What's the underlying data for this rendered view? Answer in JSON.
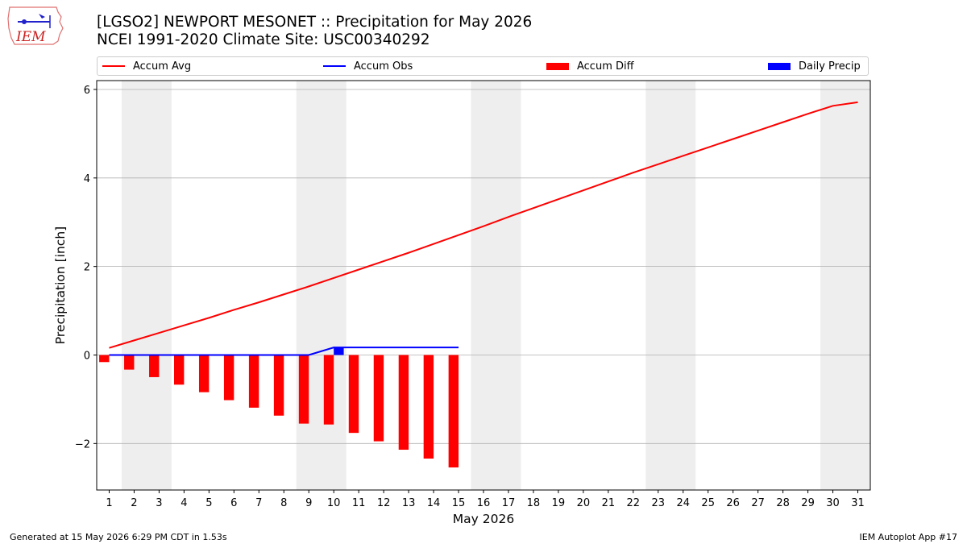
{
  "title_line1": "[LGSO2] NEWPORT MESONET :: Precipitation for May 2026",
  "title_line2": "NCEI 1991-2020 Climate Site: USC00340292",
  "logo_text": "IEM",
  "footer_left": "Generated at 15 May 2026 6:29 PM CDT in 1.53s",
  "footer_right": "IEM Autoplot App #17",
  "colors": {
    "accum_avg": "#ff0000",
    "accum_obs": "#0000ff",
    "accum_diff": "#ff0000",
    "daily_precip": "#0000ff",
    "weekend_shade": "#eeeeee",
    "grid": "#b0b0b0"
  },
  "chart_data": {
    "type": "bar",
    "title": "[LGSO2] NEWPORT MESONET :: Precipitation for May 2026",
    "subtitle": "NCEI 1991-2020 Climate Site: USC00340292",
    "xlabel": "May 2026",
    "ylabel": "Precipitation [inch]",
    "xlim": [
      0.5,
      31.5
    ],
    "ylim": [
      -3.05,
      6.2
    ],
    "yticks": [
      -2,
      0,
      2,
      4,
      6
    ],
    "ytick_labels": [
      "−2",
      "0",
      "2",
      "4",
      "6"
    ],
    "xticks": [
      1,
      2,
      3,
      4,
      5,
      6,
      7,
      8,
      9,
      10,
      11,
      12,
      13,
      14,
      15,
      16,
      17,
      18,
      19,
      20,
      21,
      22,
      23,
      24,
      25,
      26,
      27,
      28,
      29,
      30,
      31
    ],
    "grid": "horizontal",
    "legend_position": "top",
    "weekend_spans": [
      [
        1.5,
        3.5
      ],
      [
        8.5,
        10.5
      ],
      [
        15.5,
        17.5
      ],
      [
        22.5,
        24.5
      ],
      [
        29.5,
        31.5
      ]
    ],
    "series": [
      {
        "name": "Accum Avg",
        "kind": "line",
        "x": [
          1,
          2,
          3,
          4,
          5,
          6,
          7,
          8,
          9,
          10,
          11,
          12,
          13,
          14,
          15,
          16,
          17,
          18,
          19,
          20,
          21,
          22,
          23,
          24,
          25,
          26,
          27,
          28,
          29,
          30,
          31
        ],
        "values": [
          0.16,
          0.33,
          0.5,
          0.67,
          0.84,
          1.02,
          1.19,
          1.37,
          1.55,
          1.74,
          1.93,
          2.12,
          2.31,
          2.51,
          2.71,
          2.91,
          3.12,
          3.32,
          3.52,
          3.72,
          3.92,
          4.12,
          4.31,
          4.5,
          4.69,
          4.88,
          5.07,
          5.26,
          5.45,
          5.63,
          5.71
        ]
      },
      {
        "name": "Accum Obs",
        "kind": "line",
        "x": [
          1,
          2,
          3,
          4,
          5,
          6,
          7,
          8,
          9,
          10,
          11,
          12,
          13,
          14,
          15
        ],
        "values": [
          0,
          0,
          0,
          0,
          0,
          0,
          0,
          0,
          0,
          0.17,
          0.17,
          0.17,
          0.17,
          0.17,
          0.17
        ]
      },
      {
        "name": "Accum Diff",
        "kind": "bar",
        "offset": -0.2,
        "x": [
          1,
          2,
          3,
          4,
          5,
          6,
          7,
          8,
          9,
          10,
          11,
          12,
          13,
          14,
          15
        ],
        "values": [
          -0.16,
          -0.33,
          -0.5,
          -0.67,
          -0.84,
          -1.02,
          -1.19,
          -1.37,
          -1.55,
          -1.57,
          -1.76,
          -1.95,
          -2.14,
          -2.34,
          -2.54
        ]
      },
      {
        "name": "Daily Precip",
        "kind": "bar",
        "offset": 0.2,
        "x": [
          10
        ],
        "values": [
          0.17
        ]
      }
    ]
  }
}
